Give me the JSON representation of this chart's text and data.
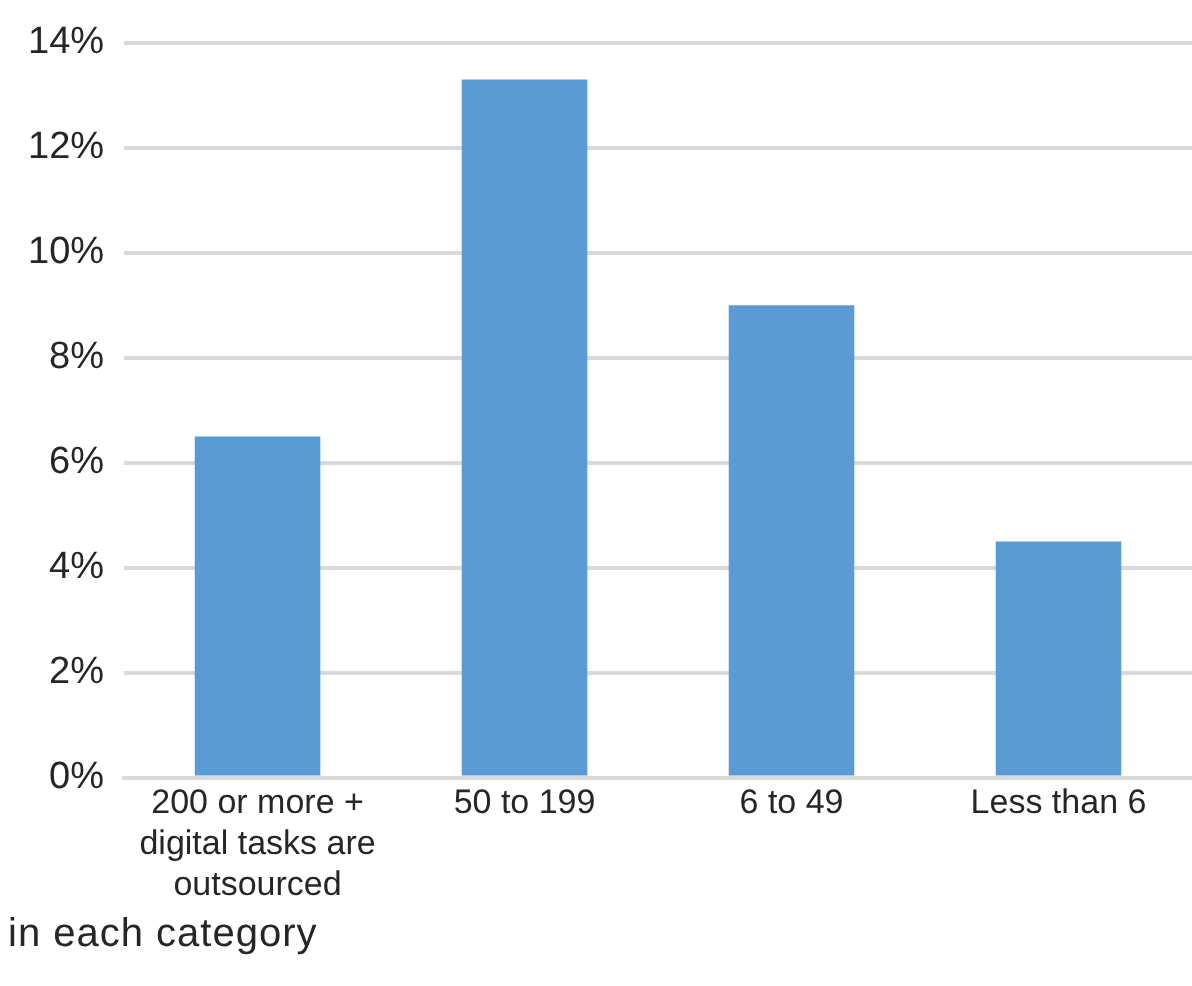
{
  "chart_data": {
    "type": "bar",
    "categories": [
      "200 or more + digital tasks are outsourced",
      "50 to 199",
      "6 to 49",
      "Less than 6"
    ],
    "values": [
      6.5,
      13.3,
      9.0,
      4.5
    ],
    "color": "#5b9bd5",
    "ylim": [
      0,
      14
    ],
    "yticks": [
      {
        "value": 0,
        "label": "0%"
      },
      {
        "value": 2,
        "label": "2%"
      },
      {
        "value": 4,
        "label": "4%"
      },
      {
        "value": 6,
        "label": "6%"
      },
      {
        "value": 8,
        "label": "8%"
      },
      {
        "value": 10,
        "label": "10%"
      },
      {
        "value": 12,
        "label": "12%"
      },
      {
        "value": 14,
        "label": "14%"
      }
    ],
    "grid": "y",
    "annotations": [
      "in each category"
    ]
  }
}
